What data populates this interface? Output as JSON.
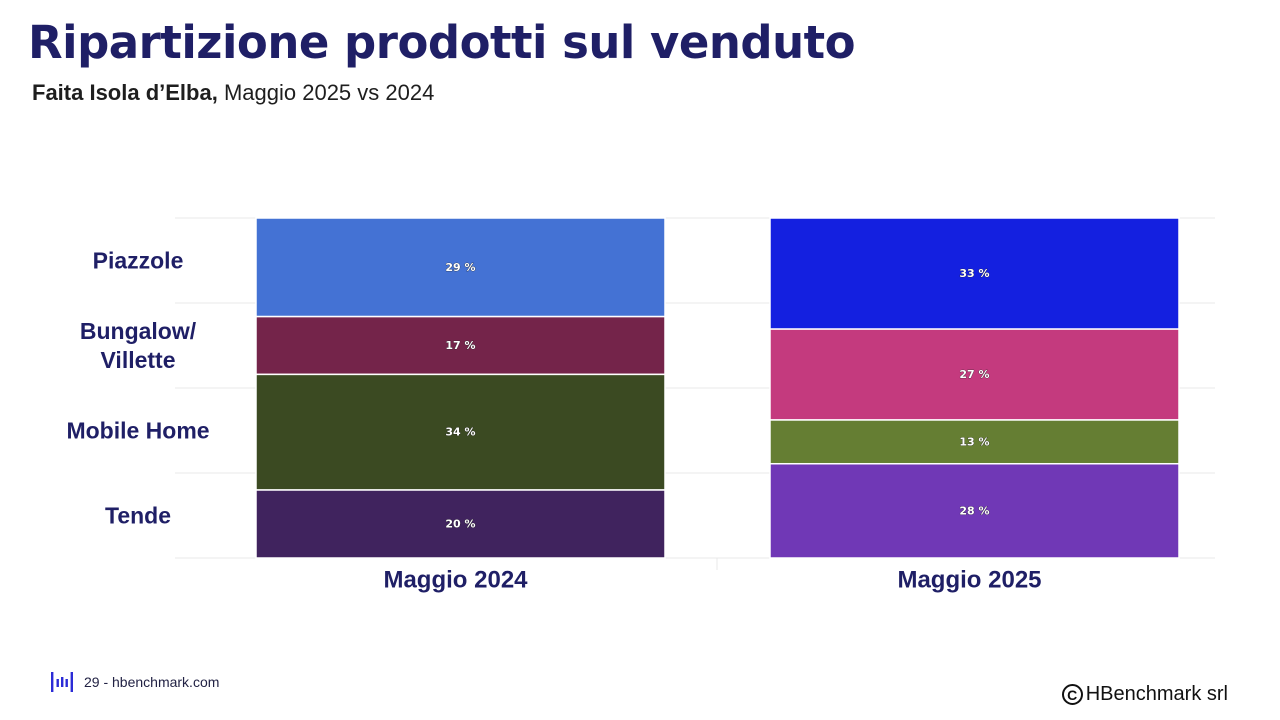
{
  "header": {
    "title": "Ripartizione prodotti sul venduto",
    "subtitle_bold": "Faita Isola d’Elba,",
    "subtitle_rest": " Maggio 2025 vs 2024"
  },
  "footer": {
    "page_text": "29 - hbenchmark.com",
    "copyright_symbol": "C",
    "company": "HBenchmark srl",
    "logo_icon": "hbenchmark-logo-icon"
  },
  "chart_data": {
    "type": "bar",
    "stacked": true,
    "normalized": true,
    "categories": [
      "Maggio 2024",
      "Maggio 2025"
    ],
    "row_labels": [
      [
        "Piazzole"
      ],
      [
        "Bungalow/",
        "Villette"
      ],
      [
        "Mobile Home"
      ],
      [
        "Tende"
      ]
    ],
    "series": [
      {
        "values": [
          29,
          33
        ],
        "labels": [
          "29 %",
          "33 %"
        ],
        "colors": [
          "#4472d4",
          "#1420e0"
        ]
      },
      {
        "values": [
          17,
          27
        ],
        "labels": [
          "17 %",
          "27 %"
        ],
        "colors": [
          "#74244a",
          "#c43a7e"
        ]
      },
      {
        "values": [
          34,
          13
        ],
        "labels": [
          "34 %",
          "13 %"
        ],
        "colors": [
          "#3b4a22",
          "#657e33"
        ]
      },
      {
        "values": [
          20,
          28
        ],
        "labels": [
          "20 %",
          "28 %"
        ],
        "colors": [
          "#40235e",
          "#7038b6"
        ]
      }
    ],
    "ylim": [
      0,
      100
    ],
    "grid": true,
    "legend": "none",
    "colors": {
      "axis_label": "#1f1f66",
      "gridline": "#e8e8e8",
      "segment_label": "#ffffff"
    }
  }
}
